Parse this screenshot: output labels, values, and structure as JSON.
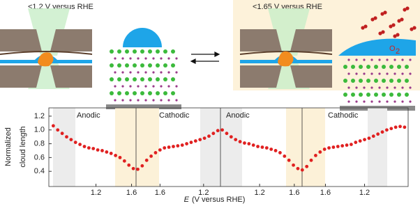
{
  "schematic": {
    "left_label": "<1.2 V versus RHE",
    "right_label": "<1.65 V versus RHE",
    "gas_label": "O",
    "gas_subscript": "2"
  },
  "chart_data": {
    "type": "scatter",
    "ylabel": [
      "Normalized",
      "cloud length"
    ],
    "xlabel_symbol": "E",
    "xlabel": "(V versus RHE)",
    "annotations": [
      "Anodic",
      "Cathodic",
      "Anodic",
      "Cathodic"
    ],
    "x": [
      0.05,
      0.1,
      0.15,
      0.2,
      0.25,
      0.3,
      0.35,
      0.4,
      0.45,
      0.5,
      0.55,
      0.6,
      0.65,
      0.7,
      0.75,
      0.8,
      0.85,
      0.9,
      0.95,
      1.0,
      1.05,
      1.1,
      1.15,
      1.2,
      1.25,
      1.3,
      1.35,
      1.4,
      1.45,
      1.5,
      1.55,
      1.6,
      1.65,
      1.7,
      1.75,
      1.8,
      1.85,
      1.9,
      1.95,
      2.0,
      2.05,
      2.1,
      2.15,
      2.2,
      2.25,
      2.3,
      2.35,
      2.4,
      2.45,
      2.5,
      2.55,
      2.6,
      2.65,
      2.7,
      2.75,
      2.8,
      2.85,
      2.9,
      2.95,
      3.0,
      3.05,
      3.1,
      3.15,
      3.2,
      3.25,
      3.3,
      3.35,
      3.4,
      3.45,
      3.5,
      3.55,
      3.6,
      3.65,
      3.7,
      3.75,
      3.8,
      3.85,
      3.9,
      3.95,
      4.0
    ],
    "series": [
      {
        "color": "#e02020",
        "values": [
          1.06,
          1.0,
          0.95,
          0.9,
          0.86,
          0.82,
          0.79,
          0.76,
          0.74,
          0.73,
          0.71,
          0.7,
          0.68,
          0.66,
          0.63,
          0.6,
          0.55,
          0.49,
          0.44,
          0.43,
          0.48,
          0.56,
          0.62,
          0.67,
          0.71,
          0.74,
          0.75,
          0.76,
          0.77,
          0.78,
          0.8,
          0.82,
          0.84,
          0.86,
          0.88,
          0.91,
          0.95,
          0.99,
          1.0,
          0.95,
          0.9,
          0.86,
          0.83,
          0.81,
          0.8,
          0.78,
          0.76,
          0.75,
          0.74,
          0.72,
          0.7,
          0.67,
          0.62,
          0.56,
          0.49,
          0.44,
          0.42,
          0.47,
          0.56,
          0.63,
          0.68,
          0.72,
          0.74,
          0.75,
          0.76,
          0.77,
          0.78,
          0.79,
          0.82,
          0.84,
          0.86,
          0.88,
          0.91,
          0.94,
          0.97,
          1.0,
          1.02,
          1.04,
          1.05,
          1.04
        ]
      }
    ],
    "xlim": [
      0,
      4.04
    ],
    "xticks": [
      {
        "value": 0.53,
        "label": "1.2"
      },
      {
        "value": 0.93,
        "label": "1.6"
      },
      {
        "value": 1.25,
        "label": "1.6"
      },
      {
        "value": 1.74,
        "label": "1.2"
      },
      {
        "value": 2.37,
        "label": "1.2"
      },
      {
        "value": 2.76,
        "label": "1.6"
      },
      {
        "value": 3.11,
        "label": "1.6"
      },
      {
        "value": 3.55,
        "label": "1.2"
      }
    ],
    "ylim": [
      0.18,
      1.32
    ],
    "yticks": [
      0.4,
      0.6,
      0.8,
      1.0,
      1.2
    ],
    "ytick_labels": [
      "0.4",
      "0.6",
      "0.8",
      "1.0",
      "1.2"
    ]
  }
}
